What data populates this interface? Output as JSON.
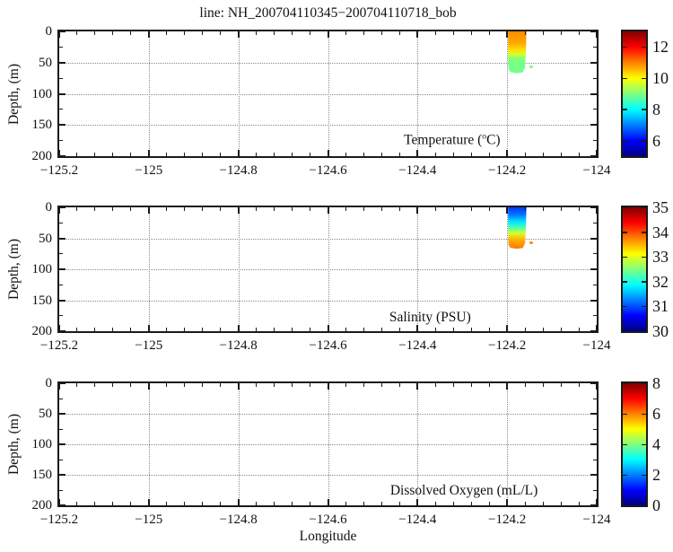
{
  "figure": {
    "title": "line: NH_200704110345−200704110718_bob",
    "xlabel": "Longitude",
    "ylabel": "Depth, (m)"
  },
  "axes": {
    "xlim": [
      -125.2,
      -124
    ],
    "x_major_ticks": [
      -125.2,
      -125,
      -124.8,
      -124.6,
      -124.4,
      -124.2,
      -124
    ],
    "x_tick_labels": [
      "−125.2",
      "−125",
      "−124.8",
      "−124.6",
      "−124.4",
      "−124.2",
      "−124"
    ],
    "x_minor_step": 0.04,
    "ylim": [
      0,
      200
    ],
    "y_axis_reversed": true,
    "y_major_ticks": [
      0,
      50,
      100,
      150,
      200
    ],
    "y_tick_labels": [
      "0",
      "50",
      "100",
      "150",
      "200"
    ],
    "y_minor_step": 25,
    "grid_x": [
      -125,
      -124.8,
      -124.6,
      -124.4,
      -124.2
    ],
    "grid_y": [
      50,
      100,
      150
    ],
    "grid_style": "dotted"
  },
  "chart_data": [
    {
      "type": "heatmap",
      "key": "temperature",
      "label_parts": [
        {
          "text": "Temperature ("
        },
        {
          "text": "o",
          "sup": true
        },
        {
          "text": "C)"
        }
      ],
      "colormap": "jet",
      "colorbar": {
        "range": [
          5,
          13
        ],
        "ticks": [
          6,
          8,
          10,
          12
        ],
        "tick_labels": [
          "6",
          "8",
          "10",
          "12"
        ]
      },
      "data": {
        "lon_range": [
          -124.198,
          -124.157
        ],
        "depth_range": [
          0,
          67
        ],
        "profile": [
          {
            "depth": 0,
            "value": 10.9
          },
          {
            "depth": 18,
            "value": 10.7
          },
          {
            "depth": 28,
            "value": 10.3
          },
          {
            "depth": 36,
            "value": 9.7
          },
          {
            "depth": 42,
            "value": 9.1
          },
          {
            "depth": 50,
            "value": 8.95
          },
          {
            "depth": 67,
            "value": 8.9
          }
        ],
        "dot": {
          "lon": -124.151,
          "depth": 55,
          "value": 8.9
        }
      }
    },
    {
      "type": "heatmap",
      "key": "salinity",
      "label_parts": [
        {
          "text": "Salinity (PSU)"
        }
      ],
      "colormap": "jet",
      "colorbar": {
        "range": [
          30,
          35
        ],
        "ticks": [
          30,
          31,
          32,
          33,
          34,
          35
        ],
        "tick_labels": [
          "30",
          "31",
          "32",
          "33",
          "34",
          "35"
        ]
      },
      "data": {
        "lon_range": [
          -124.198,
          -124.157
        ],
        "depth_range": [
          0,
          67
        ],
        "profile": [
          {
            "depth": 0,
            "value": 30.9
          },
          {
            "depth": 12,
            "value": 31.2
          },
          {
            "depth": 22,
            "value": 31.7
          },
          {
            "depth": 32,
            "value": 32.2
          },
          {
            "depth": 42,
            "value": 32.9
          },
          {
            "depth": 52,
            "value": 33.5
          },
          {
            "depth": 67,
            "value": 33.8
          }
        ],
        "dot": {
          "lon": -124.151,
          "depth": 55,
          "value": 33.7
        }
      }
    },
    {
      "type": "heatmap",
      "key": "dissolved-oxygen",
      "label_parts": [
        {
          "text": "Dissolved Oxygen (mL/L)"
        }
      ],
      "colormap": "jet",
      "colorbar": {
        "range": [
          0,
          8
        ],
        "ticks": [
          0,
          2,
          4,
          6,
          8
        ],
        "tick_labels": [
          "0",
          "2",
          "4",
          "6",
          "8"
        ]
      },
      "data": null
    }
  ]
}
